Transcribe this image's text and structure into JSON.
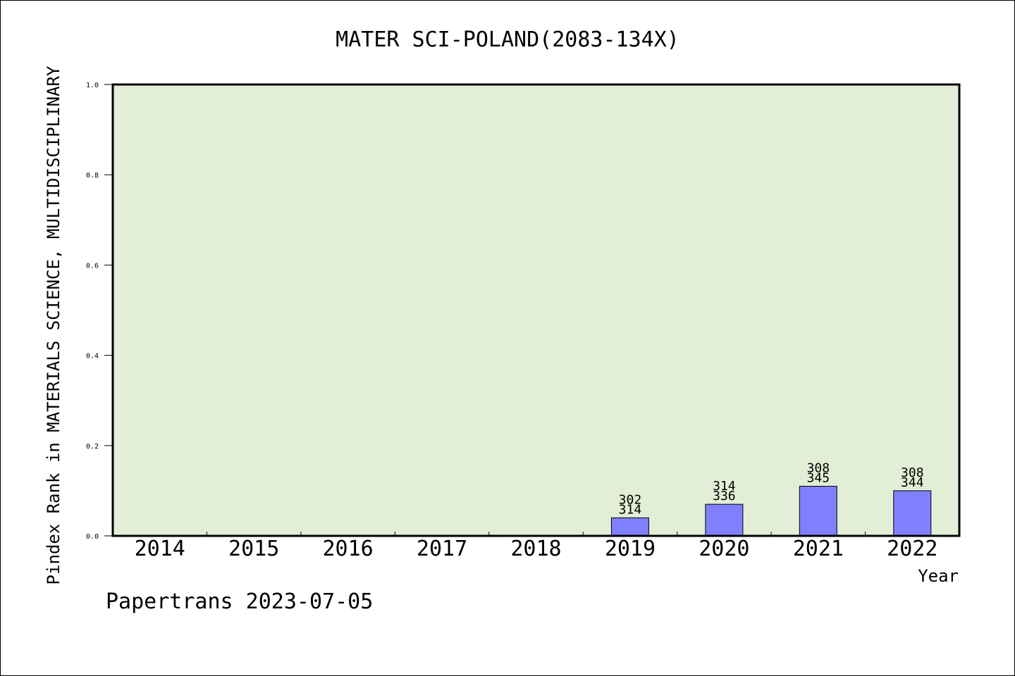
{
  "chart_data": {
    "type": "bar",
    "title": "MATER SCI-POLAND(2083-134X)",
    "xlabel": "Year",
    "ylabel": "Pindex Rank in MATERIALS SCIENCE, MULTIDISCIPLINARY",
    "ylim": [
      0,
      1.0
    ],
    "yticks": [
      "0.0",
      "0.2",
      "0.4",
      "0.6",
      "0.8",
      "1.0"
    ],
    "categories": [
      "2014",
      "2015",
      "2016",
      "2017",
      "2018",
      "2019",
      "2020",
      "2021",
      "2022"
    ],
    "values": [
      null,
      null,
      null,
      null,
      null,
      0.04,
      0.07,
      0.11,
      0.1
    ],
    "rank_labels": [
      null,
      null,
      null,
      null,
      null,
      "302",
      "314",
      "308",
      "308"
    ],
    "total_labels": [
      null,
      null,
      null,
      null,
      null,
      "314",
      "336",
      "345",
      "344"
    ],
    "grid": false,
    "colors": {
      "plot_background": "#e2efd6",
      "bar_fill": "#8080ff",
      "bar_stroke": "#000000"
    }
  },
  "footer": "Papertrans 2023-07-05"
}
